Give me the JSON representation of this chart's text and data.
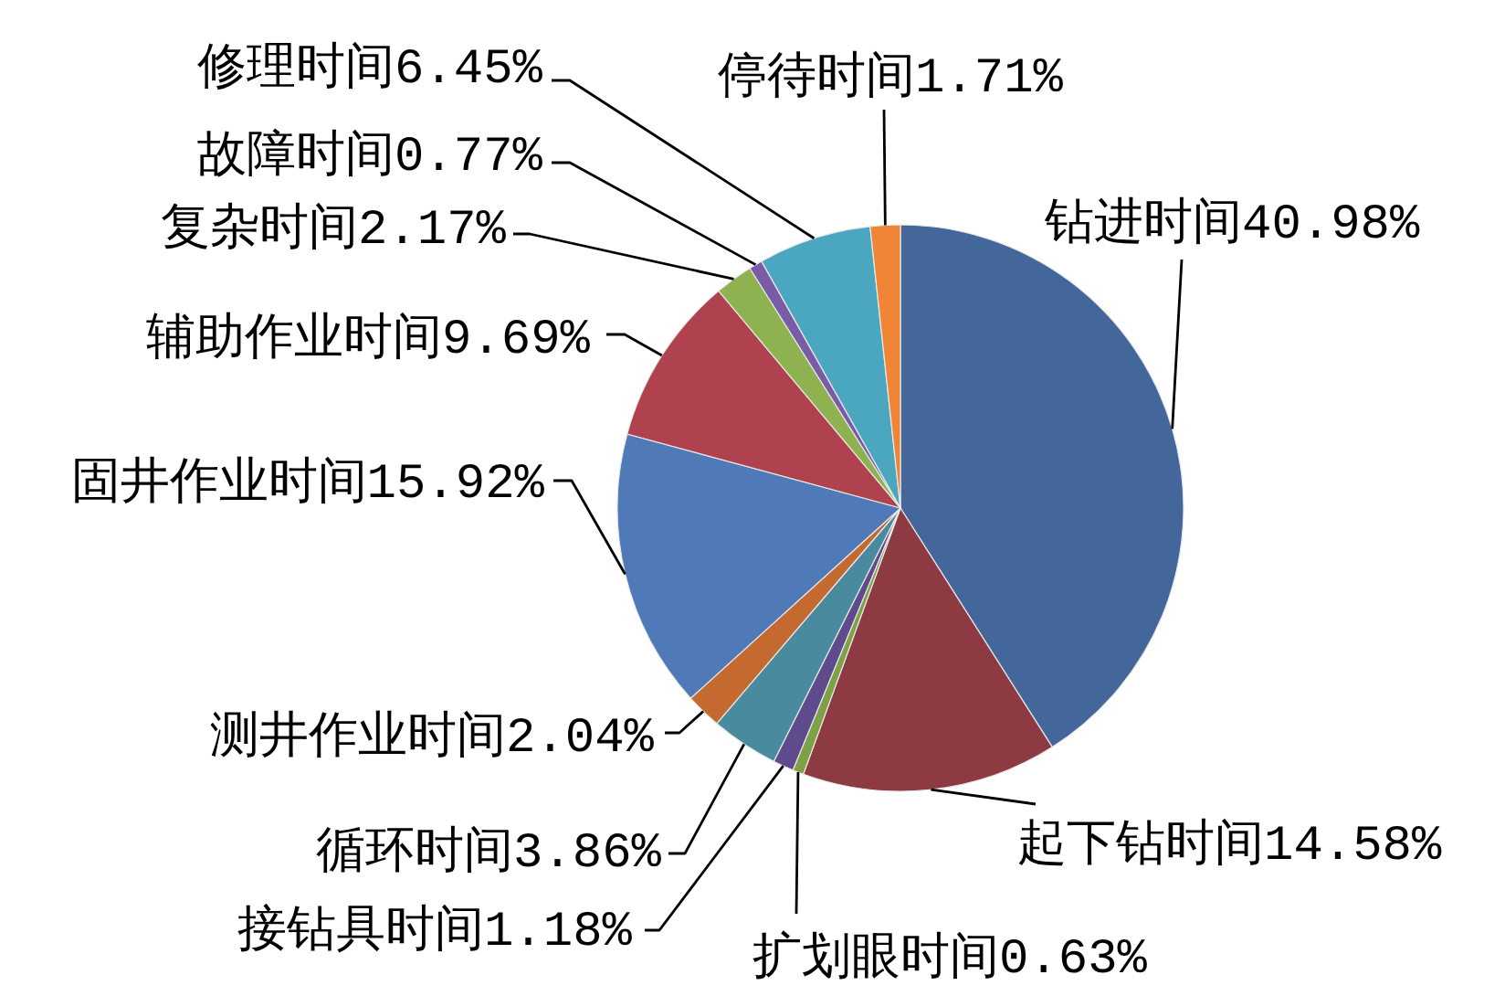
{
  "chart_data": {
    "type": "pie",
    "categories": [
      "钻进时间",
      "起下钻时间",
      "扩划眼时间",
      "接钻具时间",
      "循环时间",
      "测井作业时间",
      "固井作业时间",
      "辅助作业时间",
      "复杂时间",
      "故障时间",
      "修理时间",
      "停待时间"
    ],
    "values": [
      40.98,
      14.58,
      0.63,
      1.18,
      3.86,
      2.04,
      15.92,
      9.69,
      2.17,
      0.77,
      6.45,
      1.71
    ],
    "value_labels": [
      "40.98%",
      "14.58%",
      "0.63%",
      "1.18%",
      "3.86%",
      "2.04%",
      "15.92%",
      "9.69%",
      "2.17%",
      "0.77%",
      "6.45%",
      "1.71%"
    ],
    "colors": [
      "#44679b",
      "#8e3a43",
      "#7ea046",
      "#5f4a8b",
      "#4a8a9e",
      "#c4692f",
      "#4f79b7",
      "#b0424f",
      "#8db24f",
      "#7a5ca6",
      "#4ba6bf",
      "#f08536"
    ]
  }
}
